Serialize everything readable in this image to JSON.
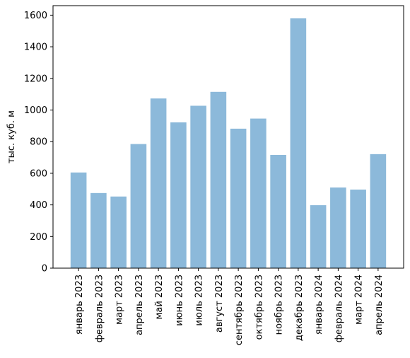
{
  "chart_data": {
    "type": "bar",
    "title": "",
    "xlabel": "",
    "ylabel": "тыс. куб. м",
    "categories": [
      "январь 2023",
      "февраль 2023",
      "март 2023",
      "апрель 2023",
      "май 2023",
      "июнь 2023",
      "июль 2023",
      "август 2023",
      "сентябрь 2023",
      "октябрь 2023",
      "ноябрь 2023",
      "декабрь 2023",
      "январь 2024",
      "февраль 2024",
      "март 2024",
      "апрель 2024"
    ],
    "values": [
      605,
      475,
      453,
      785,
      1073,
      922,
      1027,
      1115,
      882,
      946,
      716,
      1580,
      398,
      510,
      497,
      721
    ],
    "ylim": [
      0,
      1660
    ],
    "yticks": [
      0,
      200,
      400,
      600,
      800,
      1000,
      1200,
      1400,
      1600
    ],
    "grid": false,
    "legend": "none",
    "bar_color": "#8cb9da",
    "axis_color": "#000000"
  }
}
